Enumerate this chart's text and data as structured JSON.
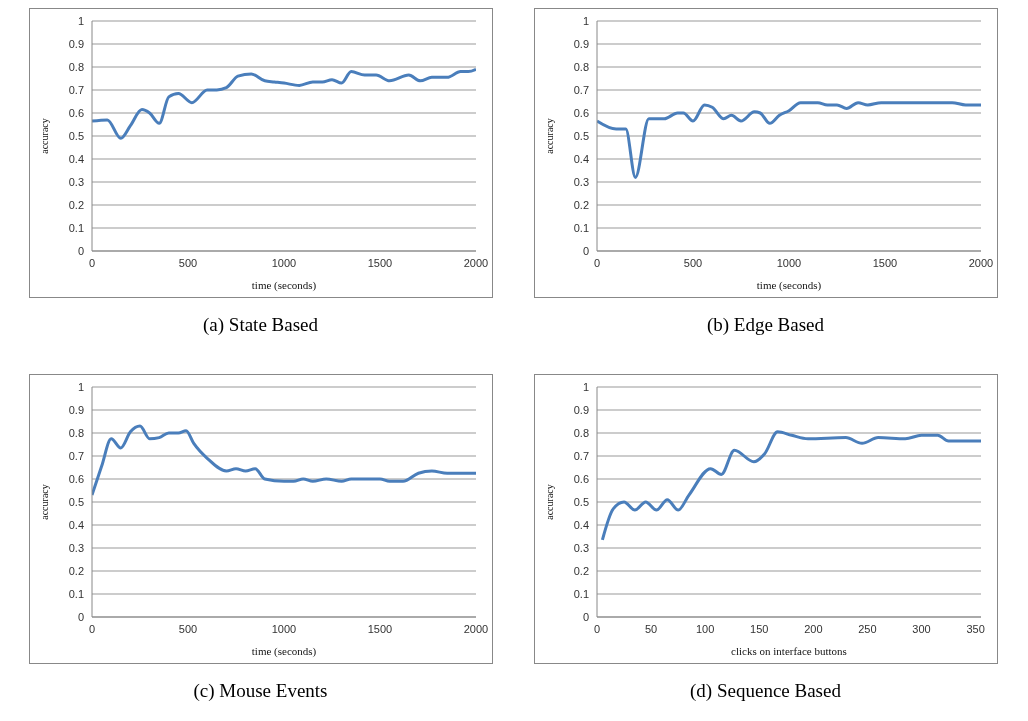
{
  "chart_data": [
    {
      "type": "line",
      "title": "(a)  State Based",
      "xlabel": "time (seconds)",
      "ylabel": "accuracy",
      "grid": "y",
      "xlim": [
        0,
        2000
      ],
      "xticks": [
        0,
        500,
        1000,
        1500,
        2000
      ],
      "ylim": [
        0,
        1
      ],
      "yticks": [
        0,
        0.1,
        0.2,
        0.3,
        0.4,
        0.5,
        0.6,
        0.7,
        0.8,
        0.9,
        1
      ],
      "x": [
        0,
        80,
        150,
        200,
        260,
        300,
        350,
        400,
        450,
        520,
        600,
        650,
        700,
        760,
        830,
        900,
        950,
        1000,
        1080,
        1150,
        1200,
        1250,
        1300,
        1350,
        1420,
        1480,
        1550,
        1650,
        1710,
        1770,
        1850,
        1920,
        1960,
        2000
      ],
      "series": [
        {
          "color": "#4a7ebb",
          "values": [
            0.565,
            0.57,
            0.49,
            0.545,
            0.615,
            0.6,
            0.555,
            0.67,
            0.685,
            0.645,
            0.7,
            0.7,
            0.71,
            0.76,
            0.77,
            0.74,
            0.735,
            0.73,
            0.72,
            0.735,
            0.735,
            0.745,
            0.73,
            0.78,
            0.765,
            0.765,
            0.74,
            0.765,
            0.74,
            0.755,
            0.755,
            0.78,
            0.78,
            0.79
          ]
        }
      ]
    },
    {
      "type": "line",
      "title": "(b)  Edge Based",
      "xlabel": "time (seconds)",
      "ylabel": "accuracy",
      "grid": "y",
      "xlim": [
        0,
        2000
      ],
      "xticks": [
        0,
        500,
        1000,
        1500,
        2000
      ],
      "ylim": [
        0,
        1
      ],
      "yticks": [
        0,
        0.1,
        0.2,
        0.3,
        0.4,
        0.5,
        0.6,
        0.7,
        0.8,
        0.9,
        1
      ],
      "x": [
        0,
        100,
        150,
        200,
        270,
        350,
        420,
        450,
        500,
        560,
        600,
        660,
        700,
        750,
        820,
        850,
        900,
        950,
        1000,
        1060,
        1150,
        1200,
        1250,
        1300,
        1360,
        1410,
        1480,
        1850,
        1920,
        2000
      ],
      "series": [
        {
          "color": "#4a7ebb",
          "values": [
            0.565,
            0.53,
            0.53,
            0.32,
            0.575,
            0.575,
            0.6,
            0.6,
            0.565,
            0.635,
            0.625,
            0.575,
            0.59,
            0.565,
            0.605,
            0.6,
            0.555,
            0.59,
            0.61,
            0.645,
            0.645,
            0.635,
            0.635,
            0.62,
            0.645,
            0.635,
            0.645,
            0.645,
            0.635,
            0.635
          ]
        }
      ]
    },
    {
      "type": "line",
      "title": "(c)  Mouse Events",
      "xlabel": "time (seconds)",
      "ylabel": "accuracy",
      "grid": "y",
      "xlim": [
        0,
        2000
      ],
      "xticks": [
        0,
        500,
        1000,
        1500,
        2000
      ],
      "ylim": [
        0,
        1
      ],
      "yticks": [
        0,
        0.1,
        0.2,
        0.3,
        0.4,
        0.5,
        0.6,
        0.7,
        0.8,
        0.9,
        1
      ],
      "x": [
        0,
        50,
        100,
        150,
        200,
        250,
        300,
        350,
        400,
        450,
        490,
        530,
        600,
        700,
        750,
        800,
        850,
        900,
        1000,
        1050,
        1100,
        1150,
        1220,
        1300,
        1350,
        1500,
        1550,
        1620,
        1700,
        1770,
        1850,
        2000
      ],
      "series": [
        {
          "color": "#4a7ebb",
          "values": [
            0.53,
            0.655,
            0.775,
            0.735,
            0.805,
            0.83,
            0.775,
            0.78,
            0.8,
            0.8,
            0.81,
            0.755,
            0.69,
            0.635,
            0.645,
            0.635,
            0.645,
            0.6,
            0.59,
            0.59,
            0.6,
            0.59,
            0.6,
            0.59,
            0.6,
            0.6,
            0.59,
            0.59,
            0.625,
            0.635,
            0.625,
            0.625
          ]
        }
      ]
    },
    {
      "type": "line",
      "title": "(d)  Sequence Based",
      "xlabel": "clicks on interface buttons",
      "ylabel": "accuracy",
      "grid": "y",
      "xlim": [
        0,
        355
      ],
      "xticks": [
        0,
        50,
        100,
        150,
        200,
        250,
        300,
        350
      ],
      "ylim": [
        0,
        1
      ],
      "yticks": [
        0,
        0.1,
        0.2,
        0.3,
        0.4,
        0.5,
        0.6,
        0.7,
        0.8,
        0.9,
        1
      ],
      "x": [
        5,
        15,
        25,
        35,
        45,
        55,
        65,
        75,
        85,
        105,
        115,
        127,
        145,
        155,
        167,
        180,
        195,
        230,
        245,
        260,
        285,
        300,
        315,
        325,
        355
      ],
      "series": [
        {
          "color": "#4a7ebb",
          "values": [
            0.335,
            0.47,
            0.5,
            0.465,
            0.5,
            0.465,
            0.51,
            0.465,
            0.53,
            0.645,
            0.62,
            0.725,
            0.675,
            0.71,
            0.805,
            0.79,
            0.775,
            0.78,
            0.755,
            0.78,
            0.775,
            0.79,
            0.79,
            0.765,
            0.765
          ]
        }
      ]
    }
  ]
}
